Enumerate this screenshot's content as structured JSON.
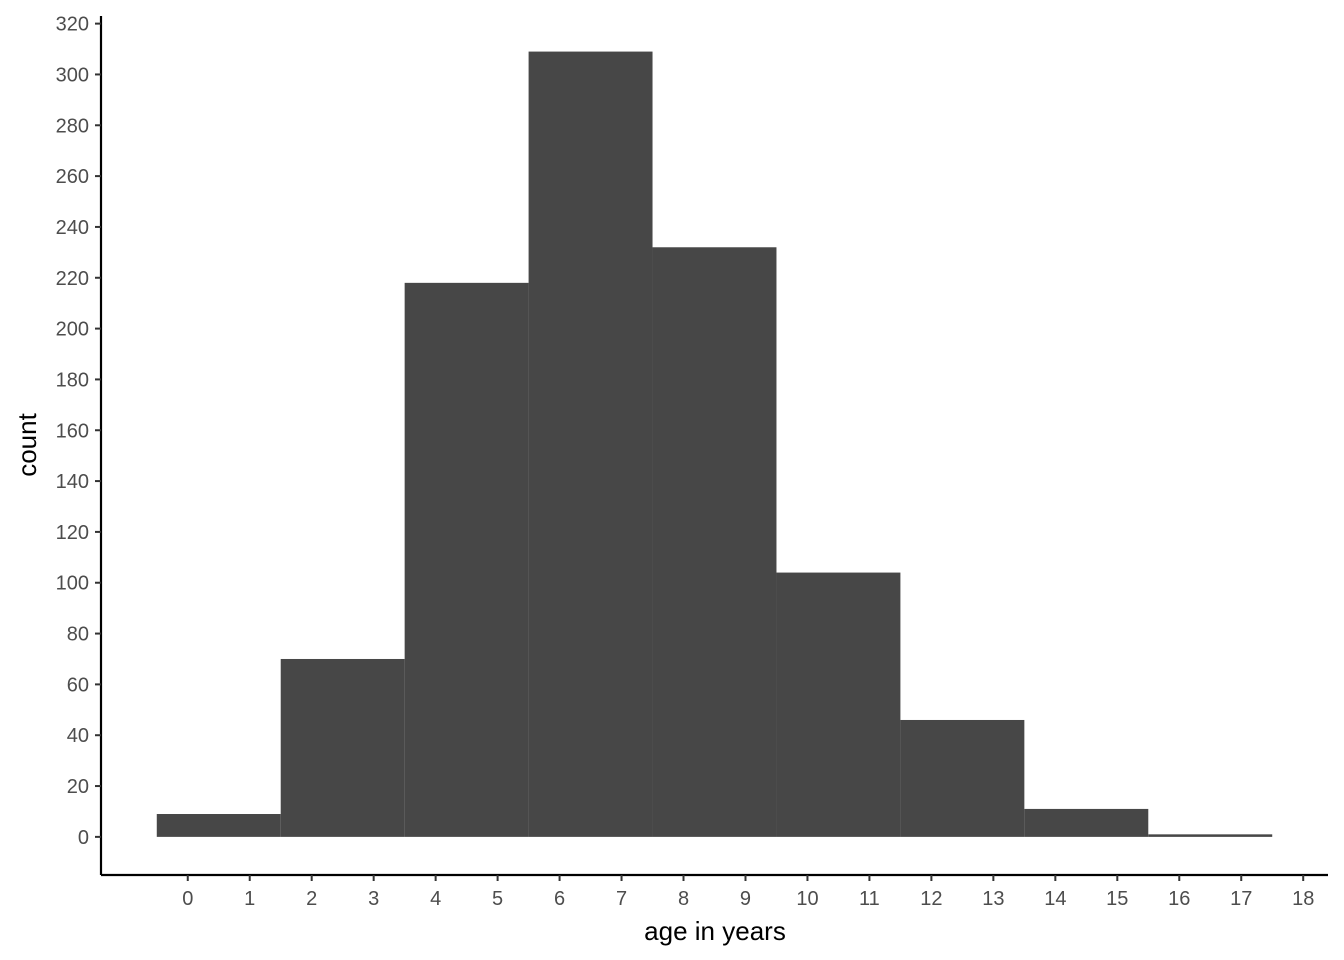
{
  "chart_data": {
    "type": "bar",
    "subtype": "histogram",
    "title": "",
    "xlabel": "age in years",
    "ylabel": "count",
    "bins": [
      {
        "start": -0.5,
        "end": 1.5,
        "count": 9
      },
      {
        "start": 1.5,
        "end": 3.5,
        "count": 70
      },
      {
        "start": 3.5,
        "end": 5.5,
        "count": 218
      },
      {
        "start": 5.5,
        "end": 7.5,
        "count": 309
      },
      {
        "start": 7.5,
        "end": 9.5,
        "count": 232
      },
      {
        "start": 9.5,
        "end": 11.5,
        "count": 104
      },
      {
        "start": 11.5,
        "end": 13.5,
        "count": 46
      },
      {
        "start": 13.5,
        "end": 15.5,
        "count": 11
      },
      {
        "start": 15.5,
        "end": 17.5,
        "count": 1
      }
    ],
    "x_ticks": [
      "0",
      "1",
      "2",
      "3",
      "4",
      "5",
      "6",
      "7",
      "8",
      "9",
      "10",
      "11",
      "12",
      "13",
      "14",
      "15",
      "16",
      "17",
      "18"
    ],
    "y_ticks": [
      "0",
      "20",
      "40",
      "60",
      "80",
      "100",
      "120",
      "140",
      "160",
      "180",
      "200",
      "220",
      "240",
      "260",
      "280",
      "300",
      "320"
    ],
    "xlim": [
      -1.4,
      18.4
    ],
    "ylim": [
      -15,
      323
    ],
    "grid": false,
    "legend": "none",
    "bar_color": "#474747",
    "axis_color": "#000000",
    "tick_label_color": "#4d4d4d"
  }
}
